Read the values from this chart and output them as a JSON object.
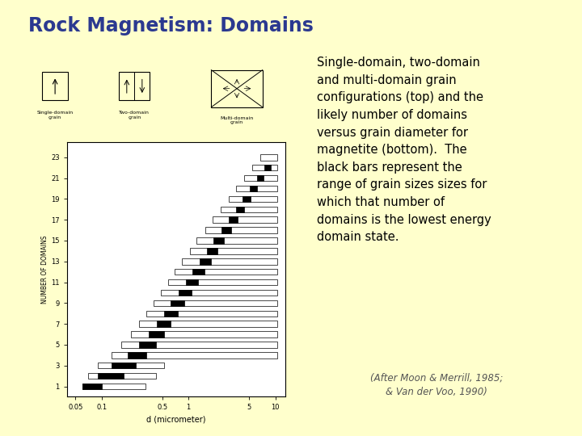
{
  "title": "Rock Magnetism: Domains",
  "title_color": "#2B3990",
  "background_color": "#FFFFCC",
  "panel_background": "#FFFFFF",
  "title_fontsize": 17,
  "title_fontweight": "bold",
  "separator_color": "#2B3990",
  "description_text": "Single-domain, two-domain\nand multi-domain grain\nconfigurations (top) and the\nlikely number of domains\nversus grain diameter for\nmagnetite (bottom).  The\nblack bars represent the\nrange of grain sizes sizes for\nwhich that number of\ndomains is the lowest energy\ndomain state.",
  "citation_text": "(After Moon & Merrill, 1985;\n& Van der Voo, 1990)",
  "ylabel": "NUMBER OF DOMAINS",
  "xlabel": "d (micrometer)",
  "xticks": [
    0.05,
    0.1,
    0.5,
    1,
    5,
    10
  ],
  "xtick_labels": [
    "0.05",
    "0.1",
    "0.5",
    "1",
    "5",
    "10"
  ],
  "yticks": [
    1,
    3,
    5,
    7,
    9,
    11,
    13,
    15,
    17,
    19,
    21,
    23
  ],
  "domains": [
    1,
    2,
    3,
    4,
    5,
    6,
    7,
    8,
    9,
    10,
    11,
    12,
    13,
    14,
    15,
    16,
    17,
    18,
    19,
    20,
    21,
    22,
    23
  ],
  "bar_white_start": [
    0.06,
    0.07,
    0.09,
    0.13,
    0.17,
    0.22,
    0.27,
    0.33,
    0.4,
    0.48,
    0.58,
    0.7,
    0.85,
    1.05,
    1.25,
    1.55,
    1.9,
    2.35,
    2.9,
    3.55,
    4.4,
    5.4,
    6.7
  ],
  "bar_white_end": [
    0.32,
    0.42,
    0.52,
    10.5,
    10.5,
    10.5,
    10.5,
    10.5,
    10.5,
    10.5,
    10.5,
    10.5,
    10.5,
    10.5,
    10.5,
    10.5,
    10.5,
    10.5,
    10.5,
    10.5,
    10.5,
    10.5,
    10.5
  ],
  "bar_black_start": [
    0.06,
    0.09,
    0.13,
    0.2,
    0.27,
    0.35,
    0.43,
    0.53,
    0.63,
    0.78,
    0.93,
    1.12,
    1.35,
    1.63,
    1.95,
    2.4,
    2.9,
    3.55,
    4.2,
    5.1,
    6.2,
    7.5,
    null
  ],
  "bar_black_end": [
    0.1,
    0.18,
    0.25,
    0.33,
    0.42,
    0.52,
    0.63,
    0.76,
    0.9,
    1.08,
    1.28,
    1.52,
    1.82,
    2.16,
    2.58,
    3.08,
    3.68,
    4.38,
    5.2,
    6.2,
    7.38,
    8.8,
    null
  ]
}
